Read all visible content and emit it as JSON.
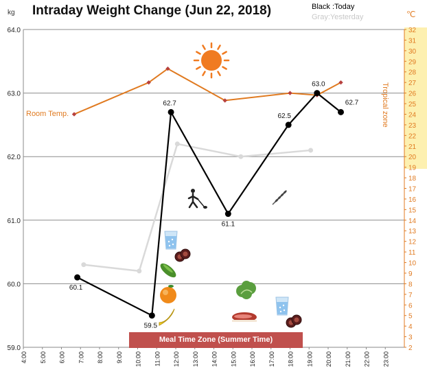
{
  "header": {
    "title": "Intraday Weight Change (Jun 22, 2018)",
    "legend_today": "Black :Today",
    "legend_yesterday": "Gray:Yesterday",
    "unit_left": "kg",
    "unit_right": "℃"
  },
  "annotations": {
    "meal_zone": "Meal Time Zone  (Summer Time)",
    "room_temp": "Room Temp.",
    "tropical_zone": "Tropical zone"
  },
  "icons": [
    "sun-icon",
    "water-glass-icon",
    "meat-slices-icon",
    "cucumber-icon",
    "orange-icon",
    "banana-icon",
    "walking-person-icon",
    "wheat-icon",
    "lettuce-icon",
    "steak-icon"
  ],
  "colors": {
    "today": "#000000",
    "yesterday": "#d9d9d9",
    "room_temp": "#e07a20",
    "room_marker": "#b7413e",
    "meal_band": "#c0504d",
    "tropical_band": "#fdf0b0",
    "sun": "#f07b21"
  },
  "chart_data": {
    "type": "line",
    "x_axis": {
      "range_hours": [
        4,
        24
      ],
      "ticks": [
        "4:00",
        "5:00",
        "6:00",
        "7:00",
        "8:00",
        "9:00",
        "10:00",
        "11:00",
        "12:00",
        "13:00",
        "14:00",
        "15:00",
        "16:00",
        "17:00",
        "18:00",
        "19:00",
        "20:00",
        "21:00",
        "22:00",
        "23:00"
      ]
    },
    "y_left": {
      "range": [
        59.0,
        64.0
      ],
      "ticks": [
        "59.0",
        "60.0",
        "61.0",
        "62.0",
        "63.0",
        "64.0"
      ],
      "grid": true
    },
    "y_right": {
      "range": [
        2,
        32
      ],
      "ticks": [
        "2",
        "3",
        "4",
        "5",
        "6",
        "7",
        "8",
        "9",
        "10",
        "11",
        "12",
        "13",
        "14",
        "15",
        "16",
        "17",
        "18",
        "19",
        "20",
        "21",
        "22",
        "23",
        "24",
        "25",
        "26",
        "27",
        "28",
        "29",
        "30",
        "31",
        "32"
      ]
    },
    "series": [
      {
        "name": "Today",
        "axis": "left",
        "points": [
          {
            "x": "6:50",
            "y": 60.1,
            "label": "60.1"
          },
          {
            "x": "10:45",
            "y": 59.5,
            "label": "59.5"
          },
          {
            "x": "11:45",
            "y": 62.7,
            "label": "62.7"
          },
          {
            "x": "14:45",
            "y": 61.1,
            "label": "61.1"
          },
          {
            "x": "17:55",
            "y": 62.5,
            "label": "62.5"
          },
          {
            "x": "19:25",
            "y": 63.0,
            "label": "63.0"
          },
          {
            "x": "20:40",
            "y": 62.7,
            "label": "62.7"
          }
        ]
      },
      {
        "name": "Yesterday",
        "axis": "left",
        "points": [
          {
            "x": "7:10",
            "y": 60.3
          },
          {
            "x": "10:05",
            "y": 60.2
          },
          {
            "x": "12:05",
            "y": 62.2
          },
          {
            "x": "15:25",
            "y": 62.0
          },
          {
            "x": "19:05",
            "y": 62.1
          }
        ]
      },
      {
        "name": "Room Temp.",
        "axis": "right",
        "points": [
          {
            "x": "6:40",
            "y": 24.0
          },
          {
            "x": "10:35",
            "y": 27.0
          },
          {
            "x": "11:35",
            "y": 28.3
          },
          {
            "x": "14:35",
            "y": 25.3
          },
          {
            "x": "18:00",
            "y": 26.0
          },
          {
            "x": "19:25",
            "y": 25.8
          },
          {
            "x": "20:40",
            "y": 27.0
          }
        ]
      }
    ],
    "bands": {
      "meal_time_hours": [
        9.6,
        18.7
      ],
      "tropical_range_c": [
        19,
        32
      ]
    }
  }
}
